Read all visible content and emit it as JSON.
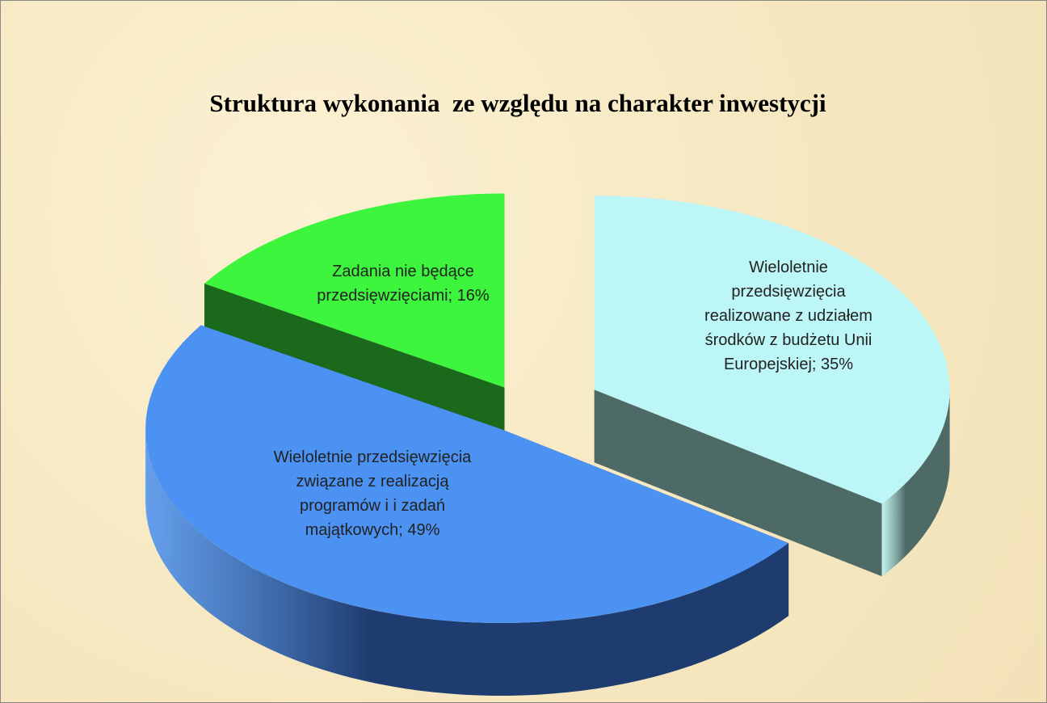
{
  "chart_data": {
    "type": "pie3d",
    "title": "Struktura wykonania  ze względu na charakter inwestycji",
    "labels": [
      "Wieloletnie przedsięwzięcia realizowane z udziałem środków z budżetu Unii Europejskiej; 35%",
      "Wieloletnie przedsięwzięcia związane z realizacją programów i i zadań majątkowych; 49%",
      "Zadania nie będące przedsięwzięciami; 16%"
    ],
    "values": [
      35,
      49,
      16
    ],
    "colors": [
      "#bdf6f6",
      "#4b92f2",
      "#3cf53c"
    ],
    "side_colors": [
      "#4e6a67",
      "#1f3c70",
      "#1b6a1b"
    ]
  }
}
